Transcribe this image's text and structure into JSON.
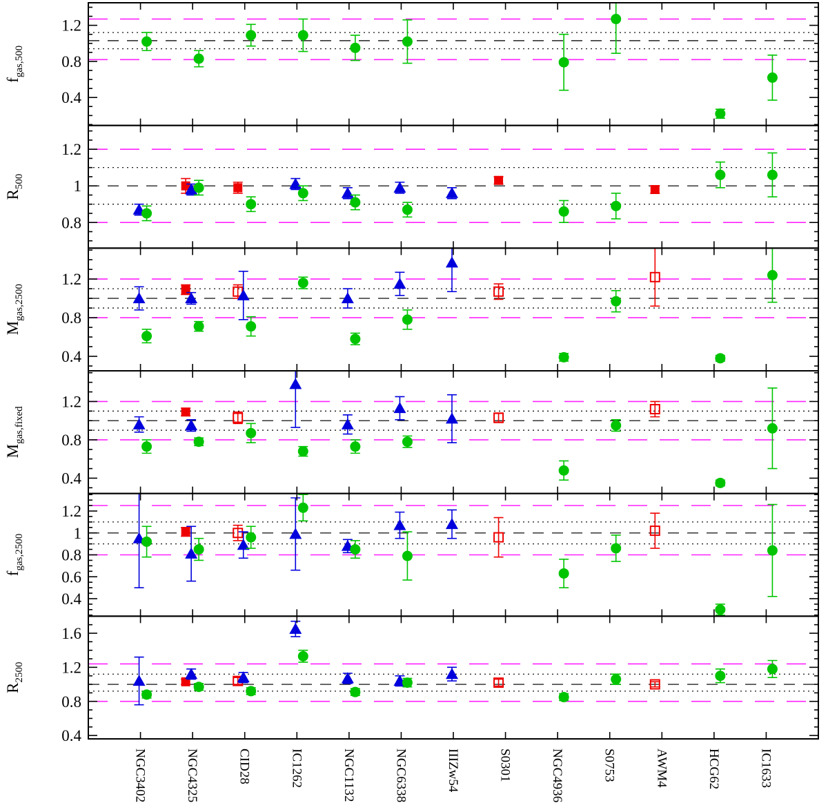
{
  "figure": {
    "description": "Six stacked ratio panels comparing cluster measurements per object",
    "background": "#ffffff"
  },
  "colors": {
    "green_circle": "#00c400",
    "blue_triangle": "#0000dd",
    "red_square": "#ee0000",
    "magenta_line": "#ff22ff",
    "dashed_line": "#222222",
    "dotted_line": "#111111",
    "frame": "#000000"
  },
  "chart_data": {
    "type": "scatter",
    "categories": [
      "NGC3402",
      "NGC4325",
      "CID28",
      "IC1262",
      "NGC1132",
      "NGC6338",
      "IIIZw54",
      "S0301",
      "NGC4936",
      "S0753",
      "AWM4",
      "HCG62",
      "IC1633"
    ],
    "legend": [
      {
        "symbol": "green-filled-circle",
        "meaning": "green measurement ratio"
      },
      {
        "symbol": "blue-filled-triangle",
        "meaning": "blue measurement ratio"
      },
      {
        "symbol": "red-filled-square",
        "meaning": "red measurement ratio (filled)"
      },
      {
        "symbol": "red-open-square",
        "meaning": "red measurement ratio (open)"
      }
    ],
    "panels": [
      {
        "label": {
          "main": "f",
          "sub": "gas,500"
        },
        "ylim": [
          0.09,
          1.45
        ],
        "yticks": [
          0.4,
          0.8,
          1.2
        ],
        "minor_step": 0.1,
        "ref_lines": {
          "magenta": [
            0.82,
            1.27
          ],
          "dotted": [
            0.94,
            1.12
          ],
          "dashed": [
            1.03
          ]
        },
        "series": {
          "green": {
            "values": [
              1.02,
              0.83,
              1.09,
              1.09,
              0.95,
              1.02,
              null,
              null,
              0.79,
              1.27,
              null,
              0.22,
              0.62
            ],
            "errors": [
              0.1,
              0.09,
              0.12,
              0.18,
              0.14,
              0.24,
              null,
              null,
              0.31,
              0.38,
              null,
              0.05,
              0.25
            ]
          },
          "blue": {
            "values": [
              null,
              null,
              null,
              null,
              null,
              null,
              null,
              null,
              null,
              null,
              null,
              null,
              null
            ],
            "errors": [
              null,
              null,
              null,
              null,
              null,
              null,
              null,
              null,
              null,
              null,
              null,
              null,
              null
            ]
          },
          "red_filled": {
            "values": [
              null,
              null,
              null,
              null,
              null,
              null,
              null,
              null,
              null,
              null,
              null,
              null,
              null
            ],
            "errors": [
              null,
              null,
              null,
              null,
              null,
              null,
              null,
              null,
              null,
              null,
              null,
              null,
              null
            ]
          },
          "red_open": {
            "values": [
              null,
              null,
              null,
              null,
              null,
              null,
              null,
              null,
              null,
              null,
              null,
              null,
              null
            ],
            "errors": [
              null,
              null,
              null,
              null,
              null,
              null,
              null,
              null,
              null,
              null,
              null,
              null,
              null
            ]
          }
        }
      },
      {
        "label": {
          "main": "R",
          "sub": "500"
        },
        "ylim": [
          0.66,
          1.33
        ],
        "yticks": [
          0.8,
          1,
          1.2
        ],
        "minor_step": 0.05,
        "ref_lines": {
          "magenta": [
            0.8,
            1.2
          ],
          "dotted": [
            0.9,
            1.1
          ],
          "dashed": [
            1.0
          ]
        },
        "series": {
          "green": {
            "values": [
              0.85,
              0.99,
              0.9,
              0.96,
              0.91,
              0.87,
              null,
              null,
              0.86,
              0.89,
              null,
              1.06,
              1.06
            ],
            "errors": [
              0.04,
              0.04,
              0.04,
              0.04,
              0.04,
              0.04,
              null,
              null,
              0.06,
              0.07,
              null,
              0.07,
              0.12
            ]
          },
          "blue": {
            "values": [
              0.87,
              0.98,
              null,
              1.01,
              0.96,
              0.99,
              0.96,
              null,
              null,
              null,
              null,
              null,
              null
            ],
            "errors": [
              0.03,
              0.03,
              null,
              0.03,
              0.03,
              0.03,
              0.03,
              null,
              null,
              null,
              null,
              null,
              null
            ]
          },
          "red_filled": {
            "values": [
              null,
              1.0,
              0.99,
              null,
              null,
              null,
              null,
              1.03,
              null,
              null,
              0.98,
              null,
              null
            ],
            "errors": [
              null,
              0.04,
              0.03,
              null,
              null,
              null,
              null,
              0.02,
              null,
              null,
              0.02,
              null,
              null
            ]
          },
          "red_open": {
            "values": [
              null,
              null,
              null,
              null,
              null,
              null,
              null,
              null,
              null,
              null,
              null,
              null,
              null
            ],
            "errors": [
              null,
              null,
              null,
              null,
              null,
              null,
              null,
              null,
              null,
              null,
              null,
              null,
              null
            ]
          }
        }
      },
      {
        "label": {
          "main": "M",
          "sub": "gas,2500"
        },
        "ylim": [
          0.25,
          1.52
        ],
        "yticks": [
          0.4,
          0.8,
          1.2
        ],
        "minor_step": 0.1,
        "ref_lines": {
          "magenta": [
            0.8,
            1.2
          ],
          "dotted": [
            0.9,
            1.1
          ],
          "dashed": [
            1.0
          ]
        },
        "series": {
          "green": {
            "values": [
              0.61,
              0.71,
              0.71,
              1.16,
              0.58,
              0.78,
              null,
              null,
              0.39,
              0.97,
              null,
              0.38,
              1.24
            ],
            "errors": [
              0.07,
              0.05,
              0.1,
              0.06,
              0.06,
              0.1,
              null,
              null,
              0.04,
              0.11,
              null,
              0.03,
              0.28
            ]
          },
          "blue": {
            "values": [
              1.0,
              1.0,
              1.03,
              null,
              1.0,
              1.15,
              1.37,
              null,
              null,
              null,
              null,
              null,
              null
            ],
            "errors": [
              0.12,
              0.06,
              0.25,
              null,
              0.1,
              0.12,
              0.3,
              null,
              null,
              null,
              null,
              null,
              null
            ]
          },
          "red_filled": {
            "values": [
              null,
              1.09,
              null,
              null,
              null,
              null,
              null,
              null,
              null,
              null,
              null,
              null,
              null
            ],
            "errors": [
              null,
              0.05,
              null,
              null,
              null,
              null,
              null,
              null,
              null,
              null,
              null,
              null,
              null
            ]
          },
          "red_open": {
            "values": [
              null,
              null,
              1.07,
              null,
              null,
              null,
              null,
              1.07,
              null,
              null,
              1.22,
              null,
              null
            ],
            "errors": [
              null,
              null,
              0.07,
              null,
              null,
              null,
              null,
              0.08,
              null,
              null,
              0.3,
              null,
              null
            ]
          }
        }
      },
      {
        "label": {
          "main": "M",
          "sub": "gas,fixed"
        },
        "ylim": [
          0.24,
          1.52
        ],
        "yticks": [
          0.4,
          0.8,
          1.2
        ],
        "minor_step": 0.1,
        "ref_lines": {
          "magenta": [
            0.8,
            1.2
          ],
          "dotted": [
            0.9,
            1.1
          ],
          "dashed": [
            1.0
          ]
        },
        "series": {
          "green": {
            "values": [
              0.73,
              0.78,
              0.87,
              0.68,
              0.73,
              0.78,
              null,
              null,
              0.48,
              0.95,
              null,
              0.35,
              0.92
            ],
            "errors": [
              0.07,
              0.04,
              0.1,
              0.05,
              0.07,
              0.06,
              null,
              null,
              0.1,
              0.06,
              null,
              0.03,
              0.42
            ]
          },
          "blue": {
            "values": [
              0.96,
              0.95,
              null,
              1.38,
              0.96,
              1.13,
              1.02,
              null,
              null,
              null,
              null,
              null,
              null
            ],
            "errors": [
              0.08,
              0.06,
              null,
              0.45,
              0.1,
              0.12,
              0.25,
              null,
              null,
              null,
              null,
              null,
              null
            ]
          },
          "red_filled": {
            "values": [
              null,
              1.09,
              null,
              null,
              null,
              null,
              null,
              null,
              null,
              null,
              null,
              null,
              null
            ],
            "errors": [
              null,
              0.04,
              null,
              null,
              null,
              null,
              null,
              null,
              null,
              null,
              null,
              null,
              null
            ]
          },
          "red_open": {
            "values": [
              null,
              null,
              1.03,
              null,
              null,
              null,
              null,
              1.03,
              null,
              null,
              1.12,
              null,
              null
            ],
            "errors": [
              null,
              null,
              0.06,
              null,
              null,
              null,
              null,
              0.05,
              null,
              null,
              0.08,
              null,
              null
            ]
          }
        }
      },
      {
        "label": {
          "main": "f",
          "sub": "gas,2500"
        },
        "ylim": [
          0.24,
          1.36
        ],
        "yticks": [
          0.4,
          0.6,
          0.8,
          1,
          1.2
        ],
        "minor_step": 0.05,
        "ref_lines": {
          "magenta": [
            0.8,
            1.25
          ],
          "dotted": [
            0.9,
            1.1
          ],
          "dashed": [
            1.0
          ]
        },
        "series": {
          "green": {
            "values": [
              0.92,
              0.85,
              0.96,
              1.23,
              0.85,
              0.79,
              null,
              null,
              0.63,
              0.86,
              null,
              0.3,
              0.84
            ],
            "errors": [
              0.14,
              0.1,
              0.1,
              0.12,
              0.08,
              0.22,
              null,
              null,
              0.13,
              0.12,
              null,
              0.05,
              0.42
            ]
          },
          "blue": {
            "values": [
              0.95,
              0.81,
              0.89,
              0.99,
              0.88,
              1.07,
              1.08,
              null,
              null,
              null,
              null,
              null,
              null
            ],
            "errors": [
              0.45,
              0.25,
              0.12,
              0.33,
              0.06,
              0.12,
              0.13,
              null,
              null,
              null,
              null,
              null,
              null
            ]
          },
          "red_filled": {
            "values": [
              null,
              1.01,
              null,
              null,
              null,
              null,
              null,
              null,
              null,
              null,
              null,
              null,
              null
            ],
            "errors": [
              null,
              0.04,
              null,
              null,
              null,
              null,
              null,
              null,
              null,
              null,
              null,
              null,
              null
            ]
          },
          "red_open": {
            "values": [
              null,
              null,
              1.0,
              null,
              null,
              null,
              null,
              0.96,
              null,
              null,
              1.02,
              null,
              null
            ],
            "errors": [
              null,
              null,
              0.07,
              null,
              null,
              null,
              null,
              0.18,
              null,
              null,
              0.16,
              null,
              null
            ]
          }
        }
      },
      {
        "label": {
          "main": "R",
          "sub": "2500"
        },
        "ylim": [
          0.36,
          1.8
        ],
        "yticks": [
          0.4,
          0.8,
          1.2,
          1.6
        ],
        "minor_step": 0.1,
        "ref_lines": {
          "magenta": [
            0.8,
            1.24
          ],
          "dotted": [
            0.92,
            1.12
          ],
          "dashed": [
            1.0
          ]
        },
        "series": {
          "green": {
            "values": [
              0.88,
              0.97,
              0.92,
              1.33,
              0.91,
              1.02,
              null,
              null,
              0.85,
              1.06,
              null,
              1.1,
              1.18
            ],
            "errors": [
              0.04,
              0.04,
              0.04,
              0.07,
              0.04,
              0.05,
              null,
              null,
              0.04,
              0.06,
              null,
              0.08,
              0.1
            ]
          },
          "blue": {
            "values": [
              1.04,
              1.12,
              1.08,
              1.65,
              1.07,
              1.04,
              1.12,
              null,
              null,
              null,
              null,
              null,
              null
            ],
            "errors": [
              0.28,
              0.06,
              0.06,
              0.09,
              0.06,
              0.06,
              0.08,
              null,
              null,
              null,
              null,
              null,
              null
            ]
          },
          "red_filled": {
            "values": [
              null,
              1.03,
              null,
              null,
              null,
              null,
              null,
              null,
              null,
              null,
              null,
              null,
              null
            ],
            "errors": [
              null,
              0.03,
              null,
              null,
              null,
              null,
              null,
              null,
              null,
              null,
              null,
              null,
              null
            ]
          },
          "red_open": {
            "values": [
              null,
              null,
              1.04,
              null,
              null,
              null,
              null,
              1.02,
              null,
              null,
              1.0,
              null,
              null
            ],
            "errors": [
              null,
              null,
              0.04,
              null,
              null,
              null,
              null,
              0.04,
              null,
              null,
              0.03,
              null,
              null
            ]
          }
        }
      }
    ]
  }
}
